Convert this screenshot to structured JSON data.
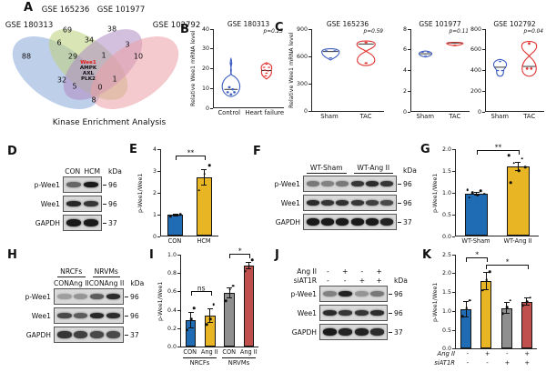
{
  "colors": {
    "bar_blue": "#1f6cb5",
    "bar_yellow": "#e8b524",
    "bar_gray": "#8f8f8f",
    "bar_red": "#c0504d",
    "violin_blue": "#3f5fc1",
    "violin_red": "#e03431",
    "venn_blue": "#89a7d8",
    "venn_green": "#bcd07a",
    "venn_purple": "#ae8cc2",
    "venn_pink": "#ec9fa6",
    "highlight_red": "#e01b1b"
  },
  "panel_a": {
    "letter": "A",
    "set_labels": [
      "GSE 180313",
      "GSE 165236",
      "GSE 101977",
      "GSE 102792"
    ],
    "counts": {
      "c88": "88",
      "c69": "69",
      "c38": "38",
      "c10": "10",
      "c6": "6",
      "c34": "34",
      "c3": "3",
      "c29": "29",
      "c1a": "1",
      "c1b": "1",
      "c32": "32",
      "c5": "5",
      "c0": "0",
      "c8": "8"
    },
    "center_genes": {
      "highlight": "Wee1",
      "g1": "AMPK",
      "g2": "AXL",
      "g3": "PLK2"
    },
    "caption": "Kinase Enrichment Analysis"
  },
  "panel_b": {
    "letter": "B",
    "title": "GSE 180313",
    "pvalue": "p=0.23",
    "ylabel": "Relative Wee1 mRNA level",
    "yticks": [
      "40",
      "30",
      "20",
      "10",
      "0"
    ],
    "xcells": [
      "Control",
      "Heart failure"
    ],
    "chart_data": {
      "type": "violin",
      "series": [
        {
          "name": "Control",
          "points": [
            4,
            6,
            7,
            8,
            9,
            10,
            12,
            23,
            26
          ]
        },
        {
          "name": "Heart failure",
          "points": [
            12,
            14,
            15,
            16,
            17,
            18,
            19,
            21
          ]
        }
      ],
      "ylim": [
        0,
        40
      ]
    }
  },
  "panel_c": {
    "letter": "C",
    "subpanels": [
      {
        "title": "GSE 165236",
        "pvalue": "p=0.59",
        "ylabel": "Relative Wee1 mRNA level",
        "yticks": [
          "900",
          "600",
          "300",
          "0"
        ],
        "xcells": [
          "Sham",
          "TAC"
        ],
        "chart_data": {
          "type": "violin",
          "series": [
            {
              "name": "Sham",
              "points": [
                480,
                560,
                620,
                650,
                660,
                690
              ]
            },
            {
              "name": "TAC",
              "points": [
                470,
                630,
                760,
                770,
                780
              ]
            }
          ],
          "ylim": [
            0,
            900
          ]
        }
      },
      {
        "title": "GSE 101977",
        "pvalue": "p=0.11",
        "yticks": [
          "8",
          "6",
          "4",
          "2",
          "0"
        ],
        "xcells": [
          "Sham",
          "TAC"
        ],
        "chart_data": {
          "type": "violin",
          "series": [
            {
              "name": "Sham",
              "points": [
                4.7,
                5.0,
                5.2,
                5.6,
                5.9
              ]
            },
            {
              "name": "TAC",
              "points": [
                6.1,
                6.3,
                6.4,
                6.6
              ]
            }
          ],
          "ylim": [
            0,
            8
          ]
        }
      },
      {
        "title": "GSE 102792",
        "pvalue": "p=0.04",
        "yticks": [
          "800",
          "600",
          "400",
          "200",
          "0"
        ],
        "xcells": [
          "Sham",
          "TAC"
        ],
        "chart_data": {
          "type": "violin",
          "series": [
            {
              "name": "Sham",
              "points": [
                280,
                300,
                420,
                430,
                500
              ]
            },
            {
              "name": "TAC",
              "points": [
                310,
                390,
                400,
                680,
                700
              ]
            }
          ],
          "ylim": [
            0,
            800
          ]
        }
      }
    ]
  },
  "panel_d": {
    "letter": "D",
    "lanes": [
      "CON",
      "HCM"
    ],
    "kda_header": "kDa",
    "rows": [
      {
        "label": "p-Wee1",
        "kda": "96",
        "bands": [
          0.6,
          1
        ]
      },
      {
        "label": "Wee1",
        "kda": "96",
        "bands": [
          0.92,
          0.85
        ]
      },
      {
        "label": "GAPDH",
        "kda": "37",
        "bands": [
          1,
          1
        ]
      }
    ]
  },
  "panel_e": {
    "letter": "E",
    "chart": {
      "type": "bar",
      "ylabel": "p-Wee1/Wee1",
      "ymax": 4,
      "yticks": [
        "4",
        "3",
        "2",
        "1",
        "0"
      ],
      "bars": [
        {
          "label": "CON",
          "value": 0.95,
          "err": 0.06,
          "color": "bar_blue",
          "dots": [
            0.9,
            0.95,
            0.99
          ]
        },
        {
          "label": "HCM",
          "value": 2.7,
          "err": 0.38,
          "color": "bar_yellow",
          "dots": [
            2.1,
            2.85,
            3.25
          ]
        }
      ],
      "sig": [
        {
          "from": 0,
          "to": 1,
          "y": 3.5,
          "label": "**"
        }
      ]
    }
  },
  "panel_f": {
    "letter": "F",
    "groups": [
      "WT-Sham",
      "WT-Ang II"
    ],
    "kda_header": "kDa",
    "rows": [
      {
        "label": "p-Wee1",
        "kda": "96",
        "bands": [
          0.5,
          0.45,
          0.5,
          0.85,
          0.9,
          0.85
        ]
      },
      {
        "label": "Wee1",
        "kda": "96",
        "bands": [
          0.9,
          0.85,
          0.88,
          0.85,
          0.8,
          0.75
        ]
      },
      {
        "label": "GAPDH",
        "kda": "37",
        "bands": [
          1,
          1,
          1,
          1,
          1,
          0.95
        ]
      }
    ]
  },
  "panel_g": {
    "letter": "G",
    "chart": {
      "type": "bar",
      "ylabel": "p-Wee1/Wee1",
      "ymax": 2,
      "yticks": [
        "2.0",
        "1.5",
        "1.0",
        "0.5",
        "0.0"
      ],
      "bars": [
        {
          "label": "WT-Sham",
          "value": 0.97,
          "err": 0.05,
          "color": "bar_blue",
          "dots": [
            0.88,
            0.93,
            0.96,
            1.0,
            1.03,
            1.06
          ]
        },
        {
          "label": "WT-Ang II",
          "value": 1.6,
          "err": 0.1,
          "color": "bar_yellow",
          "dots": [
            1.22,
            1.5,
            1.58,
            1.68,
            1.78,
            1.86
          ]
        }
      ],
      "sig": [
        {
          "from": 0,
          "to": 1,
          "y": 1.88,
          "label": "**"
        }
      ]
    }
  },
  "panel_h": {
    "letter": "H",
    "groups": [
      "NRCFs",
      "NRVMs"
    ],
    "lanes": [
      "CON",
      "Ang II",
      "CON",
      "Ang II"
    ],
    "kda_header": "kDa",
    "rows": [
      {
        "label": "p-Wee1",
        "kda": "96",
        "bands": [
          0.3,
          0.35,
          0.65,
          0.9
        ]
      },
      {
        "label": "Wee1",
        "kda": "96",
        "bands": [
          0.75,
          0.65,
          0.92,
          0.9
        ]
      },
      {
        "label": "GAPDH",
        "kda": "37",
        "bands": [
          0.85,
          0.8,
          0.75,
          0.75
        ]
      }
    ]
  },
  "panel_i": {
    "letter": "I",
    "chart": {
      "type": "bar",
      "ylabel": "p-Wee1/Wee1",
      "ymax": 1,
      "yticks": [
        "1.0",
        "0.8",
        "0.6",
        "0.4",
        "0.2",
        "0.0"
      ],
      "bars": [
        {
          "label": "CON",
          "value": 0.29,
          "err": 0.09,
          "color": "bar_blue",
          "dots": [
            0.18,
            0.3,
            0.42
          ]
        },
        {
          "label": "Ang II",
          "value": 0.34,
          "err": 0.08,
          "color": "bar_yellow",
          "dots": [
            0.24,
            0.3,
            0.46
          ]
        },
        {
          "label": "CON",
          "value": 0.58,
          "err": 0.06,
          "color": "bar_gray",
          "dots": [
            0.5,
            0.62,
            0.66
          ]
        },
        {
          "label": "Ang II",
          "value": 0.88,
          "err": 0.04,
          "color": "bar_red",
          "dots": [
            0.82,
            0.88,
            0.94
          ]
        }
      ],
      "sig": [
        {
          "from": 0,
          "to": 1,
          "y": 0.55,
          "label": "ns"
        },
        {
          "from": 2,
          "to": 3,
          "y": 0.96,
          "label": "*"
        }
      ],
      "groups": [
        {
          "label": "NRCFs",
          "from": 0,
          "to": 1
        },
        {
          "label": "NRVMs",
          "from": 2,
          "to": 3
        }
      ]
    }
  },
  "panel_j": {
    "letter": "J",
    "rows_top": [
      {
        "label": "Ang II",
        "values": [
          "-",
          "+",
          "-",
          "+"
        ]
      },
      {
        "label": "siAT1R",
        "values": [
          "-",
          "-",
          "+",
          "+"
        ]
      }
    ],
    "kda_header": "kDa",
    "rows": [
      {
        "label": "p-Wee1",
        "kda": "96",
        "bands": [
          0.45,
          0.95,
          0.35,
          0.5
        ]
      },
      {
        "label": "Wee1",
        "kda": "96",
        "bands": [
          0.9,
          0.85,
          0.85,
          0.9
        ]
      },
      {
        "label": "GAPDH",
        "kda": "37",
        "bands": [
          1,
          0.95,
          0.95,
          0.9
        ]
      }
    ]
  },
  "panel_k": {
    "letter": "K",
    "chart": {
      "type": "bar",
      "ylabel": "p-Wee1/Wee1",
      "ymax": 2.5,
      "yticks": [
        "2.5",
        "2.0",
        "1.5",
        "1.0",
        "0.5",
        "0.0"
      ],
      "bars": [
        {
          "value": 1.05,
          "err": 0.22,
          "color": "bar_blue",
          "dots": [
            0.85,
            1.08,
            1.28
          ]
        },
        {
          "value": 1.8,
          "err": 0.25,
          "color": "bar_yellow",
          "dots": [
            1.55,
            1.82,
            2.05
          ]
        },
        {
          "value": 1.08,
          "err": 0.15,
          "color": "bar_gray",
          "dots": [
            0.93,
            1.1,
            1.28
          ]
        },
        {
          "value": 1.25,
          "err": 0.1,
          "color": "bar_red",
          "dots": [
            1.15,
            1.25,
            1.35
          ]
        }
      ],
      "sig": [
        {
          "from": 0,
          "to": 1,
          "y": 2.3,
          "label": "*"
        },
        {
          "from": 1,
          "to": 3,
          "y": 2.12,
          "label": "*"
        }
      ],
      "xrows": [
        {
          "label": "Ang II",
          "values": [
            "-",
            "+",
            "-",
            "+"
          ]
        },
        {
          "label": "siAT1R",
          "values": [
            "-",
            "-",
            "+",
            "+"
          ]
        }
      ]
    }
  }
}
